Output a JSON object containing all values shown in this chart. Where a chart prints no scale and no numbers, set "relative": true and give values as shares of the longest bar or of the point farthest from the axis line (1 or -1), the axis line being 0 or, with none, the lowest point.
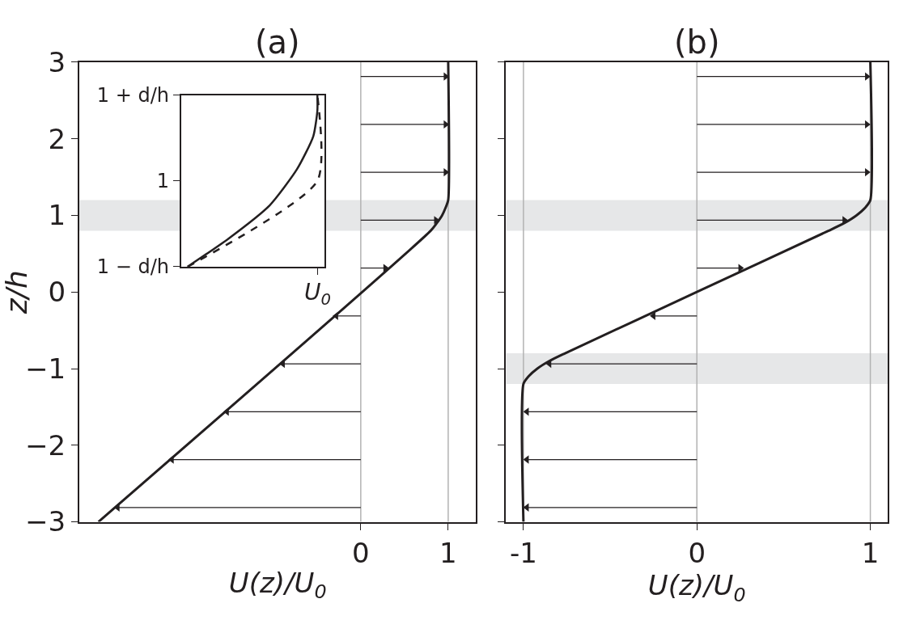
{
  "chart_data": [
    {
      "type": "line",
      "title": "(a)",
      "xlabel": "U(z)/U$_{0}$",
      "ylabel": "z/h",
      "orientation": "horizontal",
      "xlim": [
        -3.22,
        1.32
      ],
      "ylim": [
        -3,
        3
      ],
      "xticks": [
        0,
        1
      ],
      "yticks": [
        {
          "value": -3,
          "label": "−3"
        },
        {
          "value": -2,
          "label": "−2"
        },
        {
          "value": -1,
          "label": "−1"
        },
        0,
        1,
        2,
        3
      ],
      "grid": false,
      "ref_lines": [
        {
          "axis": "x",
          "value": 0,
          "color": "#b3b3b3"
        },
        {
          "axis": "x",
          "value": 1,
          "color": "#b3b3b3"
        }
      ],
      "bands": [
        {
          "axis": "y",
          "from": 0.8,
          "to": 1.2,
          "color": "#e6e7e8"
        }
      ],
      "series": [
        {
          "color": "#231f20",
          "line_style": "solid",
          "x": [
            -3,
            0.8,
            0.9,
            1.0,
            1.1,
            1.2,
            3
          ],
          "values": [
            -3,
            0.8,
            0.87,
            0.93,
            0.97,
            1.0,
            1.0
          ]
        },
        {
          "type": "lollipop",
          "color": "#231f20",
          "x": [
            -2.8125,
            -2.1875,
            -1.5625,
            -0.9375,
            -0.3125,
            0.3125,
            0.9375,
            1.5625,
            2.1875,
            2.8125
          ],
          "values": [
            -2.78,
            -2.16,
            -1.53,
            -0.89,
            -0.28,
            0.28,
            0.86,
            0.97,
            0.97,
            0.97
          ]
        }
      ]
    },
    {
      "type": "line",
      "title": "(b)",
      "xlabel": "U(z)/U$_{0}$",
      "orientation": "horizontal",
      "tick_labels": "x",
      "xlim": [
        -1.1,
        1.1
      ],
      "ylim": [
        -3,
        3
      ],
      "xticks": [
        -1,
        0,
        1
      ],
      "yticks": [
        -3,
        -2,
        -1,
        0,
        1,
        2,
        3
      ],
      "grid": false,
      "ref_lines": [
        {
          "axis": "x",
          "value": -1,
          "color": "#b3b3b3"
        },
        {
          "axis": "x",
          "value": 0,
          "color": "#b3b3b3"
        },
        {
          "axis": "x",
          "value": 1,
          "color": "#b3b3b3"
        }
      ],
      "bands": [
        {
          "axis": "y",
          "from": 0.8,
          "to": 1.2,
          "color": "#e6e7e8"
        },
        {
          "axis": "y",
          "from": -1.2,
          "to": -0.8,
          "color": "#e6e7e8"
        }
      ],
      "series": [
        {
          "color": "#231f20",
          "line_style": "solid",
          "x": [
            -3,
            -1.2,
            -1.1,
            -1.0,
            -0.9,
            -0.8,
            0,
            0.8,
            0.9,
            1.0,
            1.1,
            1.2,
            3
          ],
          "values": [
            -1,
            -1,
            -0.97,
            -0.92,
            -0.85,
            -0.76,
            0,
            0.76,
            0.85,
            0.92,
            0.97,
            1,
            1
          ]
        },
        {
          "type": "lollipop",
          "color": "#231f20",
          "x": [
            -2.8125,
            -2.1875,
            -1.5625,
            -0.9375,
            -0.3125,
            0.3125,
            0.9375,
            1.5625,
            2.1875,
            2.8125
          ],
          "values": [
            -0.98,
            -0.98,
            -0.98,
            -0.85,
            -0.25,
            0.25,
            0.85,
            0.98,
            0.98,
            0.98
          ]
        }
      ]
    },
    {
      "type": "line",
      "orientation": "horizontal",
      "relative": true,
      "ylim": [
        0.8,
        1.2
      ],
      "yticks": [
        {
          "value": 0.8,
          "label": "1 − d/h"
        },
        1,
        {
          "value": 1.2,
          "label": "1 + d/h"
        }
      ],
      "annotations": [
        "U$_{0}$"
      ],
      "grid": false,
      "bands": [
        {
          "axis": "y",
          "from": 0.8,
          "to": 1.2,
          "color": "#e6e7e8"
        }
      ],
      "series": [
        {
          "color": "#231f20",
          "line_style": "solid",
          "x": [
            0.8,
            0.866,
            0.943,
            1.027,
            1.104,
            1.164,
            1.2
          ],
          "values": [
            0.048,
            0.35,
            0.65,
            0.85,
            0.97,
            1.0,
            1.0
          ]
        },
        {
          "color": "#231f20",
          "line_style": "dashed",
          "x": [
            0.8,
            1.0,
            1.2
          ],
          "values": [
            0.048,
            1,
            1
          ]
        }
      ]
    }
  ]
}
